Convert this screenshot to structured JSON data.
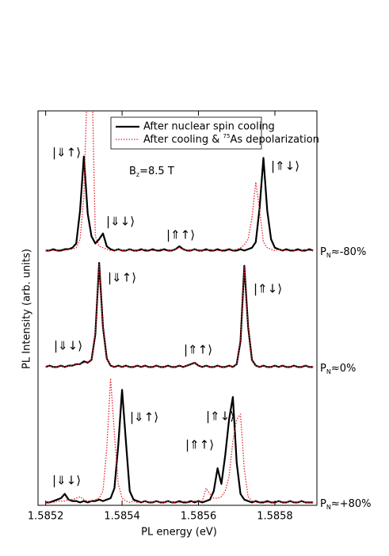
{
  "chart_data": [
    {
      "type": "line",
      "x": [
        1.5852,
        1.58521,
        1.58522,
        1.58523,
        1.58524,
        1.58525,
        1.58526,
        1.58527,
        1.58528,
        1.58529,
        1.5853,
        1.58531,
        1.58532,
        1.58533,
        1.58534,
        1.58535,
        1.58536,
        1.58537,
        1.58538,
        1.58539,
        1.5854,
        1.58541,
        1.58542,
        1.58543,
        1.58544,
        1.58545,
        1.58546,
        1.58547,
        1.58548,
        1.58549,
        1.5855,
        1.58551,
        1.58552,
        1.58553,
        1.58554,
        1.58555,
        1.58556,
        1.58557,
        1.58558,
        1.58559,
        1.5856,
        1.58561,
        1.58562,
        1.58563,
        1.58564,
        1.58565,
        1.58566,
        1.58567,
        1.58568,
        1.58569,
        1.5857,
        1.58571,
        1.58572,
        1.58573,
        1.58574,
        1.58575,
        1.58576,
        1.58577,
        1.58578,
        1.58579,
        1.5858,
        1.58581,
        1.58582,
        1.58583,
        1.58584,
        1.58585,
        1.58586,
        1.58587,
        1.58588,
        1.58589,
        1.5859
      ],
      "xlim": [
        1.58518,
        1.58591
      ],
      "ylim": [
        0,
        1
      ],
      "series": [
        {
          "name": "After nuclear spin cooling",
          "color": "#000000",
          "style": "solid",
          "values": [
            0.02,
            0.02,
            0.03,
            0.02,
            0.02,
            0.03,
            0.03,
            0.04,
            0.07,
            0.3,
            0.68,
            0.28,
            0.12,
            0.07,
            0.1,
            0.14,
            0.05,
            0.03,
            0.02,
            0.03,
            0.02,
            0.02,
            0.03,
            0.02,
            0.02,
            0.03,
            0.02,
            0.02,
            0.03,
            0.02,
            0.02,
            0.03,
            0.02,
            0.02,
            0.03,
            0.05,
            0.03,
            0.02,
            0.02,
            0.03,
            0.02,
            0.02,
            0.03,
            0.02,
            0.02,
            0.03,
            0.02,
            0.02,
            0.03,
            0.02,
            0.02,
            0.03,
            0.02,
            0.03,
            0.04,
            0.08,
            0.32,
            0.67,
            0.3,
            0.1,
            0.04,
            0.03,
            0.02,
            0.03,
            0.02,
            0.02,
            0.03,
            0.02,
            0.02,
            0.03,
            0.02
          ]
        },
        {
          "name": [
            "After cooling & ",
            "75",
            "As depolarization"
          ],
          "color": "#e8202a",
          "style": "dotted",
          "values": [
            0.02,
            0.02,
            0.02,
            0.02,
            0.03,
            0.02,
            0.03,
            0.03,
            0.04,
            0.1,
            0.4,
            1.3,
            1.4,
            0.12,
            0.05,
            0.04,
            0.03,
            0.02,
            0.02,
            0.03,
            0.02,
            0.02,
            0.03,
            0.02,
            0.02,
            0.02,
            0.03,
            0.02,
            0.02,
            0.02,
            0.03,
            0.02,
            0.02,
            0.02,
            0.03,
            0.04,
            0.03,
            0.02,
            0.02,
            0.03,
            0.02,
            0.02,
            0.02,
            0.03,
            0.02,
            0.02,
            0.02,
            0.03,
            0.02,
            0.02,
            0.03,
            0.04,
            0.06,
            0.1,
            0.25,
            0.5,
            0.3,
            0.08,
            0.04,
            0.03,
            0.02,
            0.03,
            0.02,
            0.02,
            0.03,
            0.02,
            0.02,
            0.02,
            0.03,
            0.02,
            0.02
          ]
        }
      ],
      "field": [
        "B",
        "z",
        "=8.5 T"
      ],
      "label": [
        "P",
        "N",
        "≈-80%"
      ],
      "annotations": [
        "|⇓↑⟩",
        "|⇓↓⟩",
        "|⇑↑⟩",
        "|⇑↓⟩"
      ]
    },
    {
      "type": "line",
      "x": [
        1.5852,
        1.58521,
        1.58522,
        1.58523,
        1.58524,
        1.58525,
        1.58526,
        1.58527,
        1.58528,
        1.58529,
        1.5853,
        1.58531,
        1.58532,
        1.58533,
        1.58534,
        1.58535,
        1.58536,
        1.58537,
        1.58538,
        1.58539,
        1.5854,
        1.58541,
        1.58542,
        1.58543,
        1.58544,
        1.58545,
        1.58546,
        1.58547,
        1.58548,
        1.58549,
        1.5855,
        1.58551,
        1.58552,
        1.58553,
        1.58554,
        1.58555,
        1.58556,
        1.58557,
        1.58558,
        1.58559,
        1.5856,
        1.58561,
        1.58562,
        1.58563,
        1.58564,
        1.58565,
        1.58566,
        1.58567,
        1.58568,
        1.58569,
        1.5857,
        1.58571,
        1.58572,
        1.58573,
        1.58574,
        1.58575,
        1.58576,
        1.58577,
        1.58578,
        1.58579,
        1.5858,
        1.58581,
        1.58582,
        1.58583,
        1.58584,
        1.58585,
        1.58586,
        1.58587,
        1.58588,
        1.58589,
        1.5859
      ],
      "xlim": [
        1.58518,
        1.58591
      ],
      "ylim": [
        0,
        1
      ],
      "ylabel": "PL Intensity (arb. units)",
      "series": [
        {
          "color": "#000000",
          "style": "solid",
          "values": [
            0.02,
            0.03,
            0.02,
            0.02,
            0.03,
            0.02,
            0.03,
            0.03,
            0.04,
            0.04,
            0.06,
            0.05,
            0.07,
            0.25,
            0.75,
            0.3,
            0.08,
            0.03,
            0.02,
            0.03,
            0.02,
            0.03,
            0.02,
            0.02,
            0.03,
            0.02,
            0.03,
            0.02,
            0.02,
            0.03,
            0.02,
            0.02,
            0.03,
            0.02,
            0.02,
            0.03,
            0.02,
            0.03,
            0.04,
            0.05,
            0.03,
            0.02,
            0.03,
            0.02,
            0.02,
            0.03,
            0.02,
            0.02,
            0.03,
            0.02,
            0.04,
            0.2,
            0.73,
            0.3,
            0.07,
            0.03,
            0.02,
            0.03,
            0.02,
            0.02,
            0.03,
            0.02,
            0.03,
            0.02,
            0.02,
            0.03,
            0.02,
            0.02,
            0.03,
            0.02,
            0.02
          ]
        },
        {
          "color": "#e8202a",
          "style": "dotted",
          "values": [
            0.02,
            0.03,
            0.02,
            0.02,
            0.03,
            0.02,
            0.03,
            0.03,
            0.04,
            0.04,
            0.05,
            0.05,
            0.07,
            0.26,
            0.74,
            0.3,
            0.08,
            0.03,
            0.02,
            0.03,
            0.02,
            0.03,
            0.02,
            0.02,
            0.03,
            0.02,
            0.03,
            0.02,
            0.02,
            0.03,
            0.02,
            0.02,
            0.03,
            0.02,
            0.02,
            0.03,
            0.02,
            0.03,
            0.04,
            0.05,
            0.03,
            0.02,
            0.03,
            0.02,
            0.02,
            0.03,
            0.02,
            0.02,
            0.03,
            0.02,
            0.04,
            0.21,
            0.72,
            0.3,
            0.07,
            0.03,
            0.02,
            0.03,
            0.02,
            0.02,
            0.03,
            0.02,
            0.03,
            0.02,
            0.02,
            0.03,
            0.02,
            0.02,
            0.03,
            0.02,
            0.02
          ]
        }
      ],
      "label": [
        "P",
        "N",
        "≈0%"
      ],
      "annotations": [
        "|⇓↓⟩",
        "|⇓↑⟩",
        "|⇑↑⟩",
        "|⇑↓⟩"
      ]
    },
    {
      "type": "line",
      "x": [
        1.5852,
        1.58521,
        1.58522,
        1.58523,
        1.58524,
        1.58525,
        1.58526,
        1.58527,
        1.58528,
        1.58529,
        1.5853,
        1.58531,
        1.58532,
        1.58533,
        1.58534,
        1.58535,
        1.58536,
        1.58537,
        1.58538,
        1.58539,
        1.5854,
        1.58541,
        1.58542,
        1.58543,
        1.58544,
        1.58545,
        1.58546,
        1.58547,
        1.58548,
        1.58549,
        1.5855,
        1.58551,
        1.58552,
        1.58553,
        1.58554,
        1.58555,
        1.58556,
        1.58557,
        1.58558,
        1.58559,
        1.5856,
        1.58561,
        1.58562,
        1.58563,
        1.58564,
        1.58565,
        1.58566,
        1.58567,
        1.58568,
        1.58569,
        1.5857,
        1.58571,
        1.58572,
        1.58573,
        1.58574,
        1.58575,
        1.58576,
        1.58577,
        1.58578,
        1.58579,
        1.5858,
        1.58581,
        1.58582,
        1.58583,
        1.58584,
        1.58585,
        1.58586,
        1.58587,
        1.58588,
        1.58589,
        1.5859
      ],
      "xlim": [
        1.58518,
        1.58591
      ],
      "ylim": [
        0,
        1
      ],
      "xlabel": "PL energy (eV)",
      "xticks": [
        1.5852,
        1.5854,
        1.5856,
        1.5858
      ],
      "series": [
        {
          "color": "#000000",
          "style": "solid",
          "values": [
            0.02,
            0.02,
            0.03,
            0.04,
            0.05,
            0.08,
            0.04,
            0.03,
            0.03,
            0.02,
            0.03,
            0.02,
            0.03,
            0.03,
            0.04,
            0.03,
            0.04,
            0.05,
            0.12,
            0.42,
            0.81,
            0.45,
            0.1,
            0.04,
            0.03,
            0.02,
            0.03,
            0.02,
            0.02,
            0.03,
            0.02,
            0.02,
            0.03,
            0.02,
            0.02,
            0.03,
            0.02,
            0.02,
            0.03,
            0.02,
            0.03,
            0.02,
            0.03,
            0.04,
            0.1,
            0.26,
            0.15,
            0.35,
            0.6,
            0.76,
            0.3,
            0.08,
            0.04,
            0.03,
            0.02,
            0.03,
            0.02,
            0.02,
            0.03,
            0.02,
            0.02,
            0.03,
            0.02,
            0.02,
            0.03,
            0.02,
            0.02,
            0.03,
            0.02,
            0.02,
            0.02
          ]
        },
        {
          "color": "#e8202a",
          "style": "dotted",
          "values": [
            0.02,
            0.02,
            0.02,
            0.03,
            0.03,
            0.03,
            0.04,
            0.04,
            0.05,
            0.06,
            0.04,
            0.03,
            0.03,
            0.04,
            0.05,
            0.1,
            0.4,
            0.89,
            0.5,
            0.15,
            0.05,
            0.03,
            0.02,
            0.03,
            0.02,
            0.02,
            0.03,
            0.02,
            0.02,
            0.03,
            0.02,
            0.02,
            0.03,
            0.02,
            0.02,
            0.02,
            0.03,
            0.02,
            0.02,
            0.03,
            0.02,
            0.03,
            0.12,
            0.08,
            0.05,
            0.05,
            0.06,
            0.1,
            0.2,
            0.45,
            0.6,
            0.64,
            0.25,
            0.06,
            0.03,
            0.02,
            0.02,
            0.03,
            0.02,
            0.02,
            0.02,
            0.03,
            0.02,
            0.02,
            0.03,
            0.02,
            0.02,
            0.03,
            0.02,
            0.02,
            0.02
          ]
        }
      ],
      "label": [
        "P",
        "N",
        "≈+80%"
      ],
      "annotations": [
        "|⇓↓⟩",
        "|⇓↑⟩",
        "|⇑↑⟩",
        "|⇑↓⟩"
      ]
    }
  ]
}
